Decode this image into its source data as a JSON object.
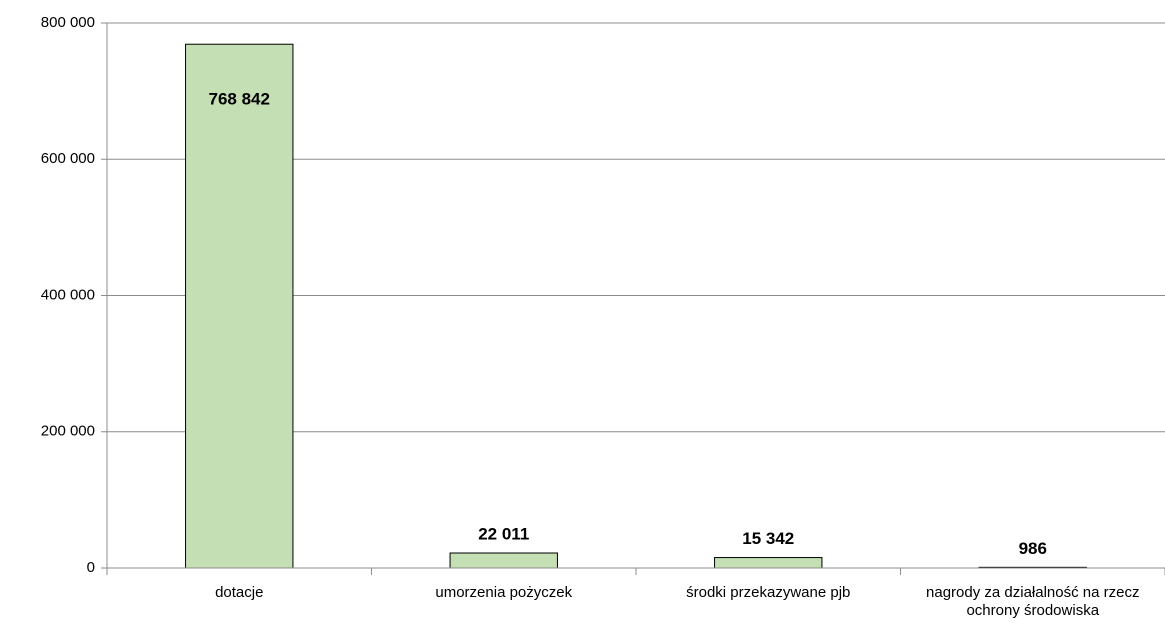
{
  "chart_data": {
    "type": "bar",
    "categories": [
      "dotacje",
      "umorzenia pożyczek",
      "środki przekazywane pjb",
      "nagrody za działalność na rzecz ochrony środowiska"
    ],
    "values": [
      768842,
      22011,
      15342,
      986
    ],
    "value_labels": [
      "768 842",
      "22 011",
      "15 342",
      "986"
    ],
    "color": "#c4dfb3",
    "ylim": [
      0,
      800000
    ],
    "yticks": [
      0,
      {
        "value": 200000,
        "label": "200 000"
      },
      {
        "value": 400000,
        "label": "400 000"
      },
      {
        "value": 600000,
        "label": "600 000"
      },
      {
        "value": 800000,
        "label": "800 000"
      }
    ],
    "grid": true
  }
}
